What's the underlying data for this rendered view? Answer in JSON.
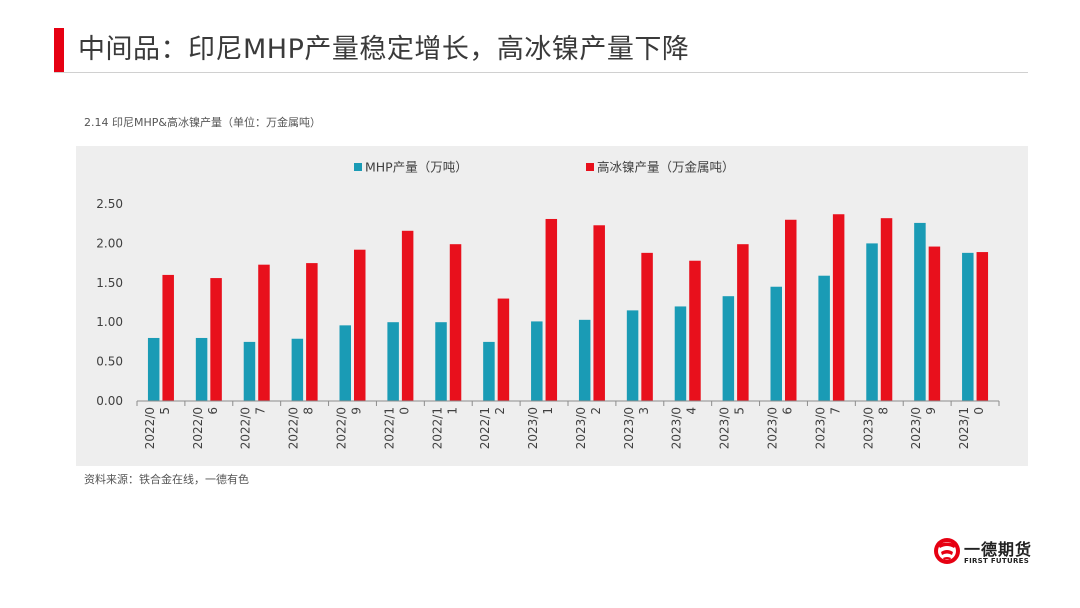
{
  "slide": {
    "title": "中间品：印尼MHP产量稳定增长，高冰镍产量下降",
    "caption": "2.14 印尼MHP&高冰镍产量（单位：万金属吨）",
    "source": "资料来源：铁合金在线，一德有色"
  },
  "logo": {
    "name_cn": "一德期货",
    "name_en": "FIRST FUTURES"
  },
  "colors": {
    "accent": "#e60012",
    "mhp": "#1a9bb5",
    "ni_matte": "#e8101c",
    "panel": "#eeeeee"
  },
  "chart_data": {
    "type": "bar",
    "categories": [
      "2022/05",
      "2022/06",
      "2022/07",
      "2022/08",
      "2022/09",
      "2022/10",
      "2022/11",
      "2022/12",
      "2023/01",
      "2023/02",
      "2023/03",
      "2023/04",
      "2023/05",
      "2023/06",
      "2023/07",
      "2023/08",
      "2023/09",
      "2023/10"
    ],
    "category_labels": [
      [
        "2022/0",
        "5"
      ],
      [
        "2022/0",
        "6"
      ],
      [
        "2022/0",
        "7"
      ],
      [
        "2022/0",
        "8"
      ],
      [
        "2022/0",
        "9"
      ],
      [
        "2022/1",
        "0"
      ],
      [
        "2022/1",
        "1"
      ],
      [
        "2022/1",
        "2"
      ],
      [
        "2023/0",
        "1"
      ],
      [
        "2023/0",
        "2"
      ],
      [
        "2023/0",
        "3"
      ],
      [
        "2023/0",
        "4"
      ],
      [
        "2023/0",
        "5"
      ],
      [
        "2023/0",
        "6"
      ],
      [
        "2023/0",
        "7"
      ],
      [
        "2023/0",
        "8"
      ],
      [
        "2023/0",
        "9"
      ],
      [
        "2023/1",
        "0"
      ]
    ],
    "series": [
      {
        "name": "MHP产量（万吨）",
        "color": "#1a9bb5",
        "values": [
          0.8,
          0.8,
          0.75,
          0.79,
          0.96,
          1.0,
          1.0,
          0.75,
          1.01,
          1.03,
          1.15,
          1.2,
          1.33,
          1.45,
          1.59,
          2.0,
          2.26,
          1.88
        ]
      },
      {
        "name": "高冰镍产量（万金属吨）",
        "color": "#e8101c",
        "values": [
          1.6,
          1.56,
          1.73,
          1.75,
          1.92,
          2.16,
          1.99,
          1.3,
          2.31,
          2.23,
          1.88,
          1.78,
          1.99,
          2.3,
          2.37,
          2.32,
          1.96,
          1.89
        ]
      }
    ],
    "yticks": [
      "0.00",
      "0.50",
      "1.00",
      "1.50",
      "2.00",
      "2.50"
    ],
    "ylim": [
      0,
      2.5
    ],
    "legend_position": "top",
    "grid": false
  }
}
